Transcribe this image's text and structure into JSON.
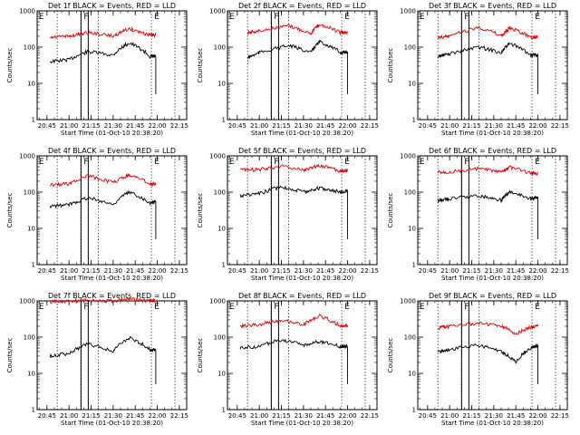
{
  "figure": {
    "type": "line",
    "y_scale": "log",
    "ylim": [
      1,
      1000
    ],
    "xlim": [
      "20:38:20",
      "22:20"
    ],
    "y_ticks": [
      "1",
      "10",
      "100",
      "1000"
    ],
    "x_ticks": [
      "20:45",
      "21:00",
      "21:15",
      "21:30",
      "21:45",
      "22:00",
      "22:15"
    ],
    "xlabel": "Start Time (01-Oct-10 20:38:20)",
    "ylabel": "Counts/sec",
    "markers": [
      {
        "label": "E",
        "time": "20:39:30"
      },
      {
        "label": "F",
        "time": "21:10:00"
      },
      {
        "label": "E",
        "time": "21:58:00"
      }
    ],
    "dotted_lines": [
      "20:52",
      "21:08",
      "21:20",
      "21:56",
      "22:12"
    ],
    "colors": {
      "events": "#000000",
      "lld": "#e00000",
      "axes": "#000000"
    }
  },
  "chart_data": [
    {
      "type": "line",
      "title": "Det 1f BLACK = Events, RED = LLD",
      "series": [
        {
          "color": "black",
          "values": [
            40,
            45,
            75,
            60,
            130,
            55,
            55
          ]
        },
        {
          "color": "red",
          "values": [
            180,
            200,
            250,
            200,
            320,
            210,
            220
          ]
        }
      ],
      "x": [
        "20:47",
        "21:00",
        "21:13",
        "21:30",
        "21:41",
        "21:55",
        "21:59"
      ]
    },
    {
      "type": "line",
      "title": "Det 2f BLACK = Events, RED = LLD",
      "series": [
        {
          "color": "black",
          "values": [
            50,
            70,
            110,
            70,
            140,
            70,
            75
          ]
        },
        {
          "color": "red",
          "values": [
            250,
            280,
            380,
            240,
            420,
            250,
            250
          ]
        }
      ],
      "x": [
        "20:52",
        "21:00",
        "21:20",
        "21:35",
        "21:41",
        "21:55",
        "22:00"
      ]
    },
    {
      "type": "line",
      "title": "Det 3f BLACK = Events, RED = LLD",
      "series": [
        {
          "color": "black",
          "values": [
            55,
            65,
            100,
            70,
            125,
            60,
            60
          ]
        },
        {
          "color": "red",
          "values": [
            180,
            200,
            350,
            200,
            330,
            190,
            190
          ]
        }
      ],
      "x": [
        "20:52",
        "21:00",
        "21:20",
        "21:35",
        "21:41",
        "21:55",
        "22:00"
      ]
    },
    {
      "type": "line",
      "title": "Det 4f BLACK = Events, RED = LLD",
      "series": [
        {
          "color": "black",
          "values": [
            40,
            45,
            70,
            45,
            100,
            50,
            55
          ]
        },
        {
          "color": "red",
          "values": [
            160,
            170,
            280,
            180,
            300,
            170,
            170
          ]
        }
      ],
      "x": [
        "20:47",
        "21:00",
        "21:13",
        "21:30",
        "21:41",
        "21:55",
        "21:59"
      ]
    },
    {
      "type": "line",
      "title": "Det 5f BLACK = Events, RED = LLD",
      "series": [
        {
          "color": "black",
          "values": [
            80,
            90,
            140,
            100,
            130,
            100,
            110
          ]
        },
        {
          "color": "red",
          "values": [
            400,
            420,
            520,
            400,
            550,
            380,
            400
          ]
        }
      ],
      "x": [
        "20:47",
        "21:00",
        "21:15",
        "21:30",
        "21:41",
        "21:55",
        "22:00"
      ]
    },
    {
      "type": "line",
      "title": "Det 6f BLACK = Events, RED = LLD",
      "series": [
        {
          "color": "black",
          "values": [
            60,
            65,
            80,
            60,
            100,
            65,
            70
          ]
        },
        {
          "color": "red",
          "values": [
            350,
            360,
            440,
            350,
            480,
            330,
            330
          ]
        }
      ],
      "x": [
        "20:52",
        "21:00",
        "21:20",
        "21:35",
        "21:41",
        "21:55",
        "22:00"
      ]
    },
    {
      "type": "line",
      "title": "Det 7f BLACK = Events, RED = LLD",
      "series": [
        {
          "color": "black",
          "values": [
            30,
            35,
            65,
            40,
            95,
            45,
            45
          ]
        },
        {
          "color": "red",
          "values": [
            950,
            1000,
            1050,
            1000,
            1100,
            1000,
            1000
          ]
        }
      ],
      "x": [
        "20:47",
        "21:00",
        "21:13",
        "21:30",
        "21:41",
        "21:55",
        "21:59"
      ]
    },
    {
      "type": "line",
      "title": "Det 8f BLACK = Events, RED = LLD",
      "series": [
        {
          "color": "black",
          "values": [
            50,
            55,
            85,
            60,
            75,
            55,
            55
          ]
        },
        {
          "color": "red",
          "values": [
            200,
            220,
            300,
            220,
            380,
            200,
            210
          ]
        }
      ],
      "x": [
        "20:47",
        "21:00",
        "21:15",
        "21:30",
        "21:41",
        "21:55",
        "22:00"
      ]
    },
    {
      "type": "line",
      "title": "Det 9f BLACK = Events, RED = LLD",
      "series": [
        {
          "color": "black",
          "values": [
            40,
            45,
            60,
            40,
            20,
            50,
            60
          ]
        },
        {
          "color": "red",
          "values": [
            180,
            200,
            240,
            200,
            120,
            190,
            200
          ]
        }
      ],
      "x": [
        "20:52",
        "21:00",
        "21:20",
        "21:35",
        "21:45",
        "21:55",
        "22:00"
      ]
    }
  ]
}
